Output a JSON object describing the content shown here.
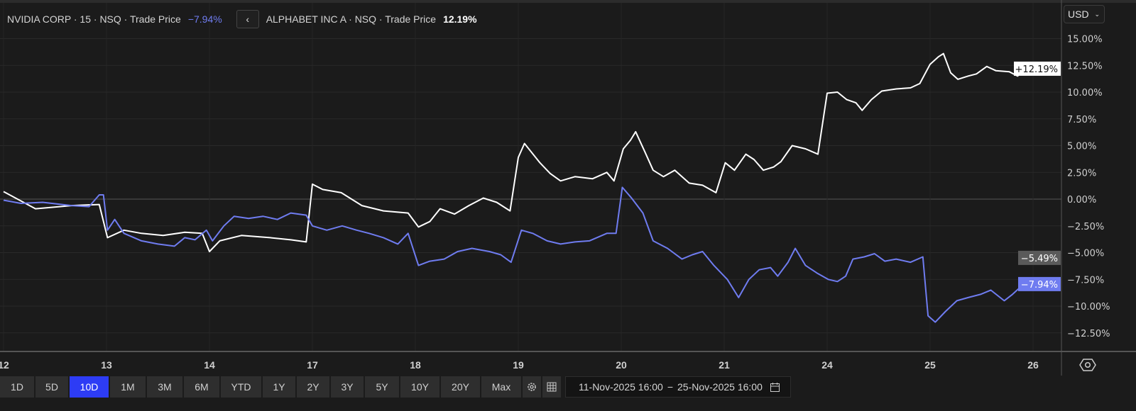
{
  "legend": {
    "nvidia_label": "NVIDIA CORP · 15 · NSQ · Trade Price",
    "nvidia_pct": "−7.94%",
    "back_icon": "chevron-left-icon",
    "alphabet_label": "ALPHABET INC A · NSQ · Trade Price",
    "alphabet_pct": "12.19%"
  },
  "currency": {
    "value": "USD",
    "icon": "chevron-down-icon"
  },
  "toolbar": {
    "ranges": [
      "1D",
      "5D",
      "10D",
      "1M",
      "3M",
      "6M",
      "YTD",
      "1Y",
      "2Y",
      "3Y",
      "5Y",
      "10Y",
      "20Y",
      "Max"
    ],
    "active": "10D",
    "settings_icon": "gear-icon",
    "table_icon": "table-icon"
  },
  "date_range": {
    "from": "11-Nov-2025 16:00",
    "separator": "-",
    "to": "25-Nov-2025 16:00",
    "icon": "calendar-icon"
  },
  "axis_settings_icon": "hexagon-settings-icon",
  "colors": {
    "background": "#1b1b1b",
    "alphabet": "#ffffff",
    "nvidia": "#6f7cf0",
    "grid": "#2a2a2a",
    "active_range": "#2d3cf5"
  },
  "chart_data": {
    "type": "line",
    "xlabel": "",
    "ylabel": "",
    "x_ticks": [
      "12",
      "13",
      "14",
      "17",
      "18",
      "19",
      "20",
      "21",
      "24",
      "25",
      "26"
    ],
    "y_ticks": [
      "15.00%",
      "12.50%",
      "10.00%",
      "7.50%",
      "5.00%",
      "2.50%",
      "0.00%",
      "-2.50%",
      "-5.00%",
      "-7.50%",
      "-10.00%",
      "-12.50%"
    ],
    "ylim": [
      -14.5,
      18.6
    ],
    "grid": true,
    "markers": [
      {
        "label": "+12.19%",
        "value": 12.19,
        "series": "alphabet"
      },
      {
        "label": "-5.49%",
        "value": -5.49,
        "series": "crosshair"
      },
      {
        "label": "-7.94%",
        "value": -7.94,
        "series": "nvidia"
      }
    ],
    "series": [
      {
        "name": "ALPHABET INC A",
        "key": "alphabet",
        "color": "#ffffff",
        "points": [
          [
            12.0,
            0.7
          ],
          [
            12.31,
            -0.9
          ],
          [
            12.66,
            -0.6
          ],
          [
            12.93,
            -0.5
          ],
          [
            13.01,
            -3.6
          ],
          [
            13.17,
            -2.9
          ],
          [
            13.34,
            -3.2
          ],
          [
            13.55,
            -3.4
          ],
          [
            13.76,
            -3.1
          ],
          [
            13.93,
            -3.2
          ],
          [
            14.0,
            -4.9
          ],
          [
            14.1,
            -3.9
          ],
          [
            14.31,
            -3.4
          ],
          [
            14.59,
            -3.6
          ],
          [
            14.79,
            -3.8
          ],
          [
            14.94,
            -4.0
          ],
          [
            17.0,
            1.4
          ],
          [
            17.1,
            0.9
          ],
          [
            17.28,
            0.6
          ],
          [
            17.48,
            -0.6
          ],
          [
            17.69,
            -1.1
          ],
          [
            17.93,
            -1.3
          ],
          [
            18.03,
            -2.6
          ],
          [
            18.14,
            -2.1
          ],
          [
            18.24,
            -0.9
          ],
          [
            18.38,
            -1.4
          ],
          [
            18.52,
            -0.6
          ],
          [
            18.66,
            0.1
          ],
          [
            18.79,
            -0.3
          ],
          [
            18.92,
            -1.1
          ],
          [
            19.0,
            3.9
          ],
          [
            19.06,
            5.2
          ],
          [
            19.21,
            3.4
          ],
          [
            19.31,
            2.4
          ],
          [
            19.41,
            1.7
          ],
          [
            19.55,
            2.1
          ],
          [
            19.72,
            1.9
          ],
          [
            19.86,
            2.5
          ],
          [
            19.93,
            1.7
          ],
          [
            20.02,
            4.7
          ],
          [
            20.09,
            5.5
          ],
          [
            20.14,
            6.3
          ],
          [
            20.23,
            4.4
          ],
          [
            20.31,
            2.7
          ],
          [
            20.41,
            2.1
          ],
          [
            20.52,
            2.7
          ],
          [
            20.66,
            1.5
          ],
          [
            20.79,
            1.3
          ],
          [
            20.92,
            0.6
          ],
          [
            21.01,
            3.4
          ],
          [
            21.1,
            2.7
          ],
          [
            21.21,
            4.2
          ],
          [
            21.29,
            3.7
          ],
          [
            21.38,
            2.7
          ],
          [
            21.48,
            3.0
          ],
          [
            21.55,
            3.5
          ],
          [
            21.66,
            5.0
          ],
          [
            21.79,
            4.7
          ],
          [
            21.91,
            4.2
          ],
          [
            24.0,
            9.9
          ],
          [
            24.1,
            10.0
          ],
          [
            24.19,
            9.3
          ],
          [
            24.28,
            9.0
          ],
          [
            24.34,
            8.3
          ],
          [
            24.43,
            9.3
          ],
          [
            24.53,
            10.1
          ],
          [
            24.67,
            10.3
          ],
          [
            24.81,
            10.4
          ],
          [
            24.9,
            10.8
          ],
          [
            25.0,
            12.6
          ],
          [
            25.08,
            13.3
          ],
          [
            25.13,
            13.6
          ],
          [
            25.2,
            11.8
          ],
          [
            25.27,
            11.2
          ],
          [
            25.37,
            11.5
          ],
          [
            25.45,
            11.7
          ],
          [
            25.55,
            12.4
          ],
          [
            25.64,
            12.0
          ],
          [
            25.77,
            11.9
          ],
          [
            25.85,
            11.5
          ],
          [
            25.93,
            12.19
          ]
        ]
      },
      {
        "name": "NVIDIA CORP",
        "key": "nvidia",
        "color": "#6f7cf0",
        "points": [
          [
            12.0,
            -0.1
          ],
          [
            12.17,
            -0.4
          ],
          [
            12.38,
            -0.3
          ],
          [
            12.66,
            -0.6
          ],
          [
            12.83,
            -0.7
          ],
          [
            12.93,
            0.4
          ],
          [
            12.97,
            0.4
          ],
          [
            13.01,
            -2.9
          ],
          [
            13.08,
            -1.9
          ],
          [
            13.17,
            -3.2
          ],
          [
            13.34,
            -3.9
          ],
          [
            13.5,
            -4.2
          ],
          [
            13.66,
            -4.4
          ],
          [
            13.76,
            -3.6
          ],
          [
            13.86,
            -3.8
          ],
          [
            13.97,
            -2.9
          ],
          [
            14.03,
            -3.9
          ],
          [
            14.14,
            -2.5
          ],
          [
            14.24,
            -1.6
          ],
          [
            14.38,
            -1.8
          ],
          [
            14.52,
            -1.6
          ],
          [
            14.66,
            -1.9
          ],
          [
            14.79,
            -1.3
          ],
          [
            14.94,
            -1.5
          ],
          [
            17.0,
            -2.5
          ],
          [
            17.14,
            -2.9
          ],
          [
            17.29,
            -2.5
          ],
          [
            17.43,
            -2.9
          ],
          [
            17.55,
            -3.2
          ],
          [
            17.69,
            -3.6
          ],
          [
            17.83,
            -4.2
          ],
          [
            17.93,
            -3.2
          ],
          [
            18.03,
            -6.2
          ],
          [
            18.14,
            -5.8
          ],
          [
            18.28,
            -5.6
          ],
          [
            18.41,
            -4.9
          ],
          [
            18.55,
            -4.6
          ],
          [
            18.72,
            -4.9
          ],
          [
            18.83,
            -5.2
          ],
          [
            18.93,
            -5.9
          ],
          [
            19.03,
            -2.9
          ],
          [
            19.14,
            -3.2
          ],
          [
            19.28,
            -3.9
          ],
          [
            19.41,
            -4.2
          ],
          [
            19.55,
            -4.0
          ],
          [
            19.69,
            -3.9
          ],
          [
            19.86,
            -3.2
          ],
          [
            19.95,
            -3.2
          ],
          [
            20.01,
            1.1
          ],
          [
            20.1,
            0.1
          ],
          [
            20.21,
            -1.3
          ],
          [
            20.31,
            -3.9
          ],
          [
            20.45,
            -4.6
          ],
          [
            20.59,
            -5.6
          ],
          [
            20.69,
            -5.2
          ],
          [
            20.79,
            -4.9
          ],
          [
            20.9,
            -6.2
          ],
          [
            21.03,
            -7.5
          ],
          [
            21.14,
            -9.2
          ],
          [
            21.24,
            -7.5
          ],
          [
            21.34,
            -6.6
          ],
          [
            21.45,
            -6.4
          ],
          [
            21.52,
            -7.2
          ],
          [
            21.62,
            -5.9
          ],
          [
            21.69,
            -4.6
          ],
          [
            21.79,
            -6.2
          ],
          [
            21.9,
            -6.9
          ],
          [
            24.01,
            -7.5
          ],
          [
            24.1,
            -7.7
          ],
          [
            24.18,
            -7.2
          ],
          [
            24.25,
            -5.6
          ],
          [
            24.36,
            -5.4
          ],
          [
            24.46,
            -5.1
          ],
          [
            24.56,
            -5.8
          ],
          [
            24.67,
            -5.6
          ],
          [
            24.81,
            -5.9
          ],
          [
            24.93,
            -5.4
          ],
          [
            24.98,
            -10.9
          ],
          [
            25.05,
            -11.5
          ],
          [
            25.15,
            -10.5
          ],
          [
            25.26,
            -9.5
          ],
          [
            25.37,
            -9.2
          ],
          [
            25.49,
            -8.9
          ],
          [
            25.59,
            -8.5
          ],
          [
            25.72,
            -9.5
          ],
          [
            25.8,
            -8.9
          ],
          [
            25.89,
            -8.1
          ],
          [
            25.97,
            -7.94
          ]
        ]
      }
    ]
  }
}
